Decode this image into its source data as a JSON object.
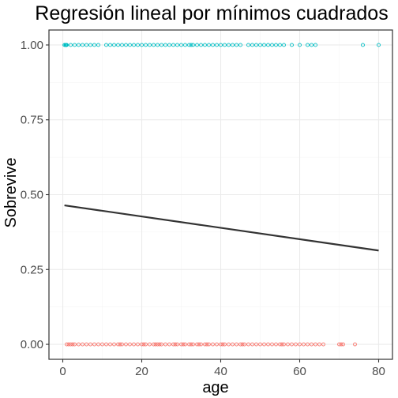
{
  "chart_data": {
    "type": "scatter",
    "title": "Regresión lineal por mínimos cuadrados",
    "xlabel": "age",
    "ylabel": "Sobrevive",
    "xlim": [
      -3.5,
      83.5
    ],
    "ylim": [
      -0.05,
      1.05
    ],
    "x_ticks": [
      "0",
      "20",
      "40",
      "60",
      "80"
    ],
    "y_ticks": [
      "0.00",
      "0.25",
      "0.50",
      "0.75",
      "1.00"
    ],
    "grid": true,
    "legend": "none",
    "colors": {
      "survived_0": "#F8766D",
      "survived_1": "#00BFC4",
      "line": "#333333"
    },
    "series": [
      {
        "y": 0,
        "color": "#F8766D",
        "x": [
          1,
          1.5,
          2,
          2.5,
          3,
          4,
          5,
          6,
          7,
          8,
          9,
          10,
          11,
          12,
          13,
          14,
          14.5,
          15,
          16,
          17,
          18,
          19,
          20,
          20.5,
          21,
          22,
          23,
          23.5,
          24,
          24.5,
          25,
          26,
          27,
          28,
          28.5,
          29,
          30,
          30.5,
          31,
          32,
          32.5,
          33,
          34,
          34.5,
          35,
          36,
          36.5,
          37,
          38,
          39,
          40,
          40.5,
          41,
          42,
          43,
          44,
          45,
          45.5,
          46,
          47,
          48,
          49,
          50,
          51,
          52,
          53,
          54,
          55,
          55.5,
          56,
          57,
          58,
          59,
          60,
          61,
          62,
          63,
          64,
          65,
          66,
          70,
          70.5,
          71,
          74
        ]
      },
      {
        "y": 1,
        "color": "#00BFC4",
        "x": [
          0.42,
          0.67,
          0.75,
          0.83,
          0.92,
          1,
          2,
          3,
          4,
          5,
          6,
          7,
          8,
          9,
          11,
          12,
          13,
          14,
          15,
          16,
          17,
          18,
          19,
          20,
          21,
          22,
          23,
          24,
          25,
          26,
          27,
          28,
          29,
          30,
          31,
          32,
          32.5,
          33,
          34,
          35,
          36,
          37,
          38,
          39,
          40,
          41,
          42,
          43,
          44,
          45,
          47,
          48,
          49,
          50,
          51,
          52,
          53,
          54,
          55,
          56,
          58,
          60,
          62,
          63,
          64,
          76,
          80
        ]
      }
    ],
    "fit_line": {
      "x": [
        0.42,
        80
      ],
      "y": [
        0.4643,
        0.3134
      ]
    }
  }
}
